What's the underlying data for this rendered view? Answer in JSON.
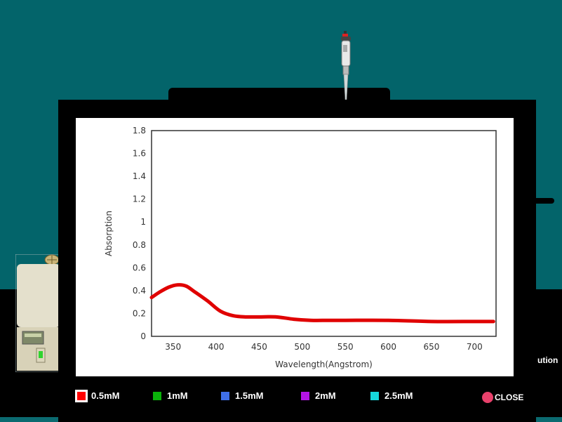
{
  "scene": {
    "side_label": "ution",
    "colors": {
      "background": "#03646a",
      "bench": "#000000"
    }
  },
  "chart_data": {
    "type": "line",
    "xlabel": "Wavelength(Angstrom)",
    "ylabel": "Absorption",
    "xlim": [
      325,
      725
    ],
    "ylim": [
      0,
      1.8
    ],
    "xticks": [
      350,
      400,
      450,
      500,
      550,
      600,
      650,
      700
    ],
    "yticks": [
      0,
      0.2,
      0.4,
      0.6,
      0.8,
      1,
      1.2,
      1.4,
      1.6,
      1.8
    ],
    "grid": false,
    "series": [
      {
        "name": "0.5mM",
        "color": "#e00000",
        "x": [
          325,
          335,
          345,
          355,
          365,
          375,
          390,
          405,
          420,
          435,
          450,
          470,
          490,
          510,
          530,
          550,
          600,
          650,
          700,
          722
        ],
        "y": [
          0.34,
          0.39,
          0.43,
          0.45,
          0.44,
          0.39,
          0.31,
          0.22,
          0.18,
          0.17,
          0.17,
          0.17,
          0.15,
          0.14,
          0.14,
          0.14,
          0.14,
          0.13,
          0.13,
          0.13
        ]
      }
    ]
  },
  "legend": {
    "items": [
      {
        "label": "0.5mM",
        "color": "#ff0000",
        "selected": true
      },
      {
        "label": "1mM",
        "color": "#0ab30a",
        "selected": false
      },
      {
        "label": "1.5mM",
        "color": "#3f6fe8",
        "selected": false
      },
      {
        "label": "2mM",
        "color": "#b414e6",
        "selected": false
      },
      {
        "label": "2.5mM",
        "color": "#16d8dc",
        "selected": false
      }
    ]
  },
  "close_button": {
    "label": "CLOSE",
    "icon": "circle-dot-icon",
    "color": "#e8416b"
  }
}
